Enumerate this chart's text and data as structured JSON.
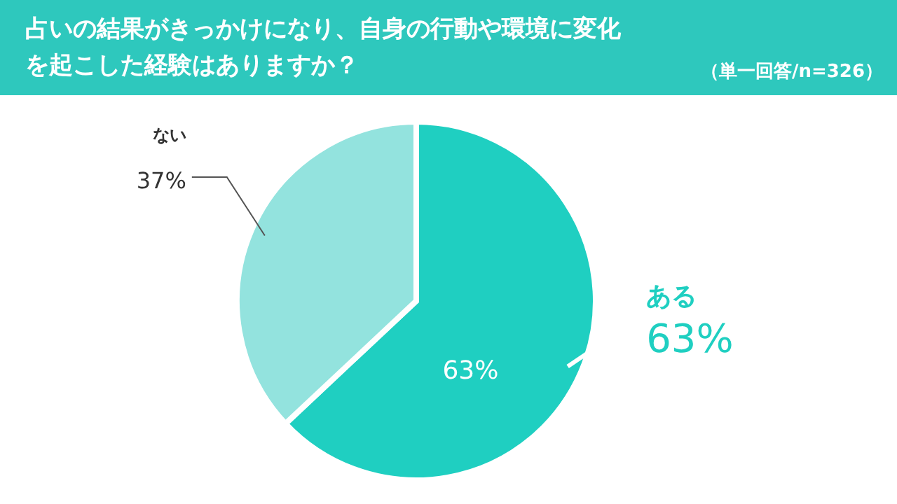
{
  "chart_data": {
    "type": "pie",
    "title": "占いの結果がきっかけになり、自身の行動や環境に変化を起こした経験はありますか？",
    "subtitle": "（単一回答/n=326）",
    "categories": [
      "ある",
      "ない"
    ],
    "values": [
      63,
      37
    ],
    "colors": [
      "#1fcfc1",
      "#93e3de"
    ],
    "value_labels": [
      "63%",
      "37%"
    ],
    "annotations": [
      {
        "text": "63%",
        "x": "ある"
      }
    ]
  }
}
